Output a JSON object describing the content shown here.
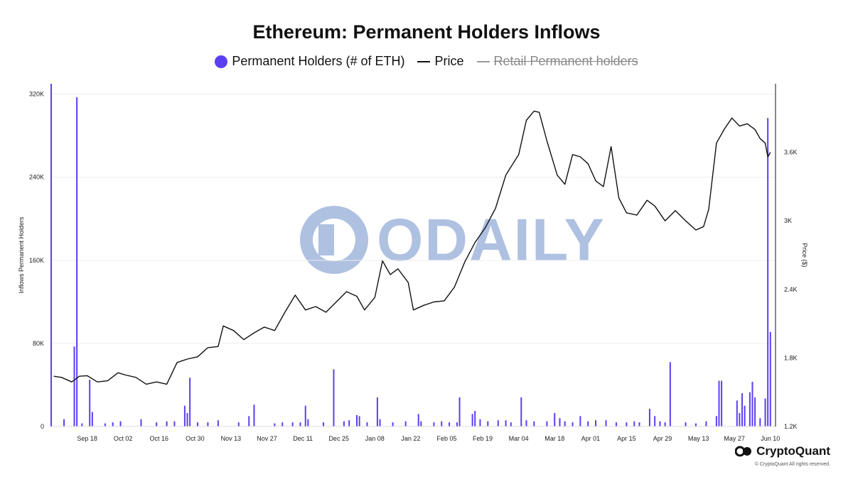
{
  "title": "Ethereum: Permanent Holders Inflows",
  "legend": [
    {
      "label": "Permanent Holders (# of ETH)",
      "marker": "dot",
      "color": "#5b3ff2",
      "enabled": true
    },
    {
      "label": "Price",
      "marker": "line",
      "color": "#111111",
      "enabled": true
    },
    {
      "label": "Retail Permanent holders",
      "marker": "line",
      "color": "#888888",
      "enabled": false
    }
  ],
  "branding": {
    "name": "CryptoQuant",
    "copyright": "© CryptoQuant All rights reserved."
  },
  "watermark": {
    "text": "ODAILY"
  },
  "chart_data": {
    "type": "bar+line",
    "x_tick_labels": [
      "Sep 18",
      "Oct 02",
      "Oct 16",
      "Oct 30",
      "Nov 13",
      "Nov 27",
      "Dec 11",
      "Dec 25",
      "Jan 08",
      "Jan 22",
      "Feb 05",
      "Feb 19",
      "Mar 04",
      "Mar 18",
      "Apr 01",
      "Apr 15",
      "Apr 29",
      "May 13",
      "May 27",
      "Jun 10"
    ],
    "y_left": {
      "label": "Inflows Permanent Holders",
      "ticks": [
        0,
        80000,
        160000,
        240000,
        320000
      ],
      "tick_labels": [
        "0",
        "80K",
        "160K",
        "240K",
        "320K"
      ],
      "range": [
        0,
        330000
      ]
    },
    "y_right": {
      "label": "Price ($)",
      "ticks": [
        1200,
        1800,
        2400,
        3000,
        3600
      ],
      "tick_labels": [
        "1.2K",
        "1.8K",
        "2.4K",
        "3K",
        "3.6K"
      ],
      "range": [
        1200,
        4200
      ]
    },
    "grid": true,
    "legend_position": "top-center",
    "series": [
      {
        "name": "Permanent Holders (# of ETH)",
        "kind": "bar",
        "color": "#5b3ff2",
        "points": [
          [
            "Sep 04",
            330000
          ],
          [
            "Sep 09",
            7000
          ],
          [
            "Sep 13",
            77000
          ],
          [
            "Sep 14",
            317000
          ],
          [
            "Sep 16",
            3000
          ],
          [
            "Sep 19",
            45000
          ],
          [
            "Sep 20",
            14000
          ],
          [
            "Sep 25",
            3000
          ],
          [
            "Sep 28",
            4000
          ],
          [
            "Oct 01",
            5000
          ],
          [
            "Oct 09",
            7000
          ],
          [
            "Oct 15",
            4000
          ],
          [
            "Oct 19",
            5000
          ],
          [
            "Oct 22",
            5000
          ],
          [
            "Oct 26",
            20000
          ],
          [
            "Oct 27",
            13000
          ],
          [
            "Oct 28",
            47000
          ],
          [
            "Oct 31",
            4000
          ],
          [
            "Nov 04",
            4000
          ],
          [
            "Nov 08",
            6000
          ],
          [
            "Nov 16",
            4000
          ],
          [
            "Nov 20",
            10000
          ],
          [
            "Nov 22",
            21000
          ],
          [
            "Nov 30",
            3000
          ],
          [
            "Dec 03",
            4000
          ],
          [
            "Dec 07",
            4000
          ],
          [
            "Dec 10",
            4000
          ],
          [
            "Dec 12",
            20000
          ],
          [
            "Dec 13",
            7000
          ],
          [
            "Dec 19",
            4000
          ],
          [
            "Dec 23",
            55000
          ],
          [
            "Dec 27",
            5000
          ],
          [
            "Dec 29",
            6000
          ],
          [
            "Jan 01",
            11000
          ],
          [
            "Jan 02",
            10000
          ],
          [
            "Jan 05",
            4000
          ],
          [
            "Jan 09",
            28000
          ],
          [
            "Jan 10",
            7000
          ],
          [
            "Jan 15",
            4000
          ],
          [
            "Jan 20",
            5000
          ],
          [
            "Jan 25",
            12000
          ],
          [
            "Jan 26",
            5000
          ],
          [
            "Jan 31",
            4000
          ],
          [
            "Feb 03",
            5000
          ],
          [
            "Feb 06",
            4000
          ],
          [
            "Feb 09",
            4000
          ],
          [
            "Feb 10",
            28000
          ],
          [
            "Feb 15",
            12000
          ],
          [
            "Feb 16",
            15000
          ],
          [
            "Feb 18",
            7000
          ],
          [
            "Feb 21",
            5000
          ],
          [
            "Feb 25",
            6000
          ],
          [
            "Feb 28",
            6000
          ],
          [
            "Mar 01",
            4000
          ],
          [
            "Mar 05",
            28000
          ],
          [
            "Mar 07",
            6000
          ],
          [
            "Mar 10",
            5000
          ],
          [
            "Mar 15",
            5000
          ],
          [
            "Mar 18",
            13000
          ],
          [
            "Mar 20",
            8000
          ],
          [
            "Mar 22",
            5000
          ],
          [
            "Mar 25",
            4000
          ],
          [
            "Mar 28",
            10000
          ],
          [
            "Mar 31",
            5000
          ],
          [
            "Apr 03",
            6000
          ],
          [
            "Apr 07",
            6000
          ],
          [
            "Apr 11",
            4000
          ],
          [
            "Apr 15",
            4000
          ],
          [
            "Apr 18",
            5000
          ],
          [
            "Apr 20",
            4000
          ],
          [
            "Apr 24",
            17000
          ],
          [
            "Apr 26",
            10000
          ],
          [
            "Apr 28",
            5000
          ],
          [
            "Apr 30",
            4000
          ],
          [
            "May 02",
            62000
          ],
          [
            "May 08",
            4000
          ],
          [
            "May 12",
            3000
          ],
          [
            "May 16",
            5000
          ],
          [
            "May 20",
            10000
          ],
          [
            "May 21",
            44000
          ],
          [
            "May 22",
            44000
          ],
          [
            "May 28",
            25000
          ],
          [
            "May 29",
            13000
          ],
          [
            "May 30",
            32000
          ],
          [
            "May 31",
            20000
          ],
          [
            "Jun 02",
            33000
          ],
          [
            "Jun 03",
            43000
          ],
          [
            "Jun 04",
            28000
          ],
          [
            "Jun 06",
            8000
          ],
          [
            "Jun 08",
            27000
          ],
          [
            "Jun 09",
            297000
          ],
          [
            "Jun 10",
            91000
          ]
        ]
      },
      {
        "name": "Price",
        "kind": "line",
        "color": "#111111",
        "points": [
          [
            "Sep 05",
            1640
          ],
          [
            "Sep 08",
            1630
          ],
          [
            "Sep 12",
            1590
          ],
          [
            "Sep 15",
            1640
          ],
          [
            "Sep 18",
            1645
          ],
          [
            "Sep 22",
            1590
          ],
          [
            "Sep 26",
            1600
          ],
          [
            "Sep 30",
            1670
          ],
          [
            "Oct 03",
            1650
          ],
          [
            "Oct 07",
            1630
          ],
          [
            "Oct 11",
            1570
          ],
          [
            "Oct 15",
            1590
          ],
          [
            "Oct 19",
            1570
          ],
          [
            "Oct 23",
            1760
          ],
          [
            "Oct 27",
            1790
          ],
          [
            "Oct 31",
            1810
          ],
          [
            "Nov 04",
            1890
          ],
          [
            "Nov 08",
            1900
          ],
          [
            "Nov 10",
            2080
          ],
          [
            "Nov 14",
            2040
          ],
          [
            "Nov 18",
            1960
          ],
          [
            "Nov 22",
            2020
          ],
          [
            "Nov 26",
            2070
          ],
          [
            "Nov 30",
            2040
          ],
          [
            "Dec 04",
            2200
          ],
          [
            "Dec 08",
            2350
          ],
          [
            "Dec 12",
            2220
          ],
          [
            "Dec 16",
            2250
          ],
          [
            "Dec 20",
            2200
          ],
          [
            "Dec 24",
            2290
          ],
          [
            "Dec 28",
            2380
          ],
          [
            "Jan 01",
            2340
          ],
          [
            "Jan 04",
            2220
          ],
          [
            "Jan 08",
            2330
          ],
          [
            "Jan 11",
            2650
          ],
          [
            "Jan 14",
            2530
          ],
          [
            "Jan 17",
            2580
          ],
          [
            "Jan 21",
            2460
          ],
          [
            "Jan 23",
            2220
          ],
          [
            "Jan 27",
            2260
          ],
          [
            "Jan 31",
            2290
          ],
          [
            "Feb 04",
            2300
          ],
          [
            "Feb 08",
            2420
          ],
          [
            "Feb 12",
            2640
          ],
          [
            "Feb 16",
            2810
          ],
          [
            "Feb 20",
            2940
          ],
          [
            "Feb 24",
            3110
          ],
          [
            "Feb 28",
            3400
          ],
          [
            "Mar 04",
            3580
          ],
          [
            "Mar 07",
            3880
          ],
          [
            "Mar 10",
            3960
          ],
          [
            "Mar 12",
            3950
          ],
          [
            "Mar 15",
            3700
          ],
          [
            "Mar 19",
            3400
          ],
          [
            "Mar 22",
            3320
          ],
          [
            "Mar 25",
            3580
          ],
          [
            "Mar 28",
            3560
          ],
          [
            "Mar 31",
            3500
          ],
          [
            "Apr 03",
            3350
          ],
          [
            "Apr 06",
            3300
          ],
          [
            "Apr 09",
            3650
          ],
          [
            "Apr 12",
            3200
          ],
          [
            "Apr 15",
            3070
          ],
          [
            "Apr 19",
            3050
          ],
          [
            "Apr 23",
            3180
          ],
          [
            "Apr 26",
            3130
          ],
          [
            "Apr 30",
            3000
          ],
          [
            "May 04",
            3090
          ],
          [
            "May 08",
            3000
          ],
          [
            "May 12",
            2920
          ],
          [
            "May 15",
            2950
          ],
          [
            "May 17",
            3100
          ],
          [
            "May 20",
            3680
          ],
          [
            "May 23",
            3800
          ],
          [
            "May 26",
            3900
          ],
          [
            "May 29",
            3830
          ],
          [
            "Jun 01",
            3850
          ],
          [
            "Jun 04",
            3800
          ],
          [
            "Jun 06",
            3720
          ],
          [
            "Jun 08",
            3680
          ],
          [
            "Jun 09",
            3560
          ],
          [
            "Jun 10",
            3600
          ]
        ]
      }
    ]
  }
}
